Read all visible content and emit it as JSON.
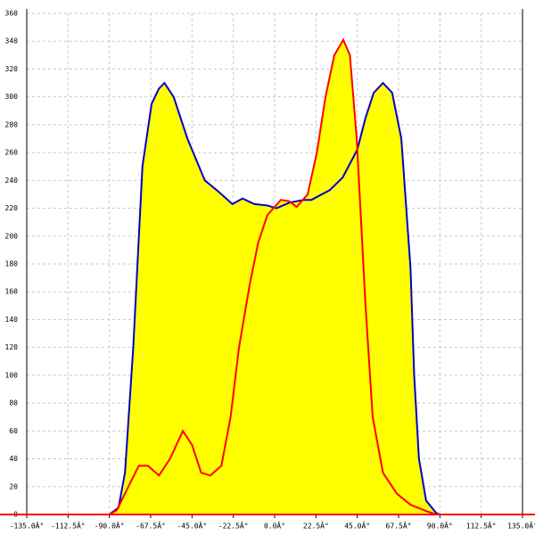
{
  "chart_data": {
    "type": "area",
    "fill": "#ffff00",
    "grid": true,
    "xlim": [
      -135,
      135
    ],
    "ylim": [
      0,
      360
    ],
    "xticks": [
      {
        "value": -135,
        "label": "-135.0Â°"
      },
      {
        "value": -112.5,
        "label": "-112.5Â°"
      },
      {
        "value": -90,
        "label": "-90.0Â°"
      },
      {
        "value": -67.5,
        "label": "-67.5Â°"
      },
      {
        "value": -45,
        "label": "-45.0Â°"
      },
      {
        "value": -22.5,
        "label": "-22.5Â°"
      },
      {
        "value": 0,
        "label": "0.0Â°"
      },
      {
        "value": 22.5,
        "label": "22.5Â°"
      },
      {
        "value": 45,
        "label": "45.0Â°"
      },
      {
        "value": 67.5,
        "label": "67.5Â°"
      },
      {
        "value": 90,
        "label": "90.0Â°"
      },
      {
        "value": 112.5,
        "label": "112.5Â°"
      },
      {
        "value": 135,
        "label": "135.0Â°"
      }
    ],
    "yticks": [
      0,
      20,
      40,
      60,
      80,
      100,
      120,
      140,
      160,
      180,
      200,
      220,
      240,
      260,
      280,
      300,
      320,
      340,
      360
    ],
    "series": [
      {
        "color": "#0000cc",
        "x": [
          -90,
          -85,
          -81.5,
          -77,
          -72,
          -67,
          -63,
          -60,
          -55,
          -47.5,
          -38,
          -30.6,
          -23,
          -17.5,
          -11,
          -4,
          1,
          8,
          15.5,
          20,
          30,
          37,
          45,
          49.5,
          54,
          59,
          64,
          69,
          74,
          76,
          78.6,
          82.5,
          88,
          90
        ],
        "values": [
          0,
          5,
          30,
          120,
          250,
          295,
          306,
          310,
          300,
          270,
          240,
          232,
          223,
          227,
          223,
          222,
          220,
          224,
          226,
          226,
          233,
          242,
          262,
          285,
          303,
          310,
          303,
          270,
          177,
          100,
          40,
          10,
          1,
          0
        ]
      },
      {
        "color": "#ff0000",
        "x": [
          -90,
          -86,
          -81.5,
          -74,
          -69,
          -63,
          -57,
          -50,
          -45,
          -40,
          -35,
          -29,
          -24,
          -19.4,
          -13.6,
          -9,
          -4,
          3.4,
          8,
          12,
          18,
          23,
          27.7,
          32.5,
          37.4,
          41,
          44.7,
          49.5,
          53.4,
          59,
          66.5,
          74,
          83.5,
          88,
          90
        ],
        "values": [
          0,
          3,
          15,
          35,
          35,
          28,
          40,
          60,
          50,
          30,
          28,
          35,
          70,
          120,
          165,
          195,
          215,
          226,
          225,
          221,
          230,
          260,
          300,
          330,
          341,
          330,
          270,
          150,
          70,
          30,
          15,
          7,
          2,
          0,
          0
        ]
      }
    ]
  }
}
